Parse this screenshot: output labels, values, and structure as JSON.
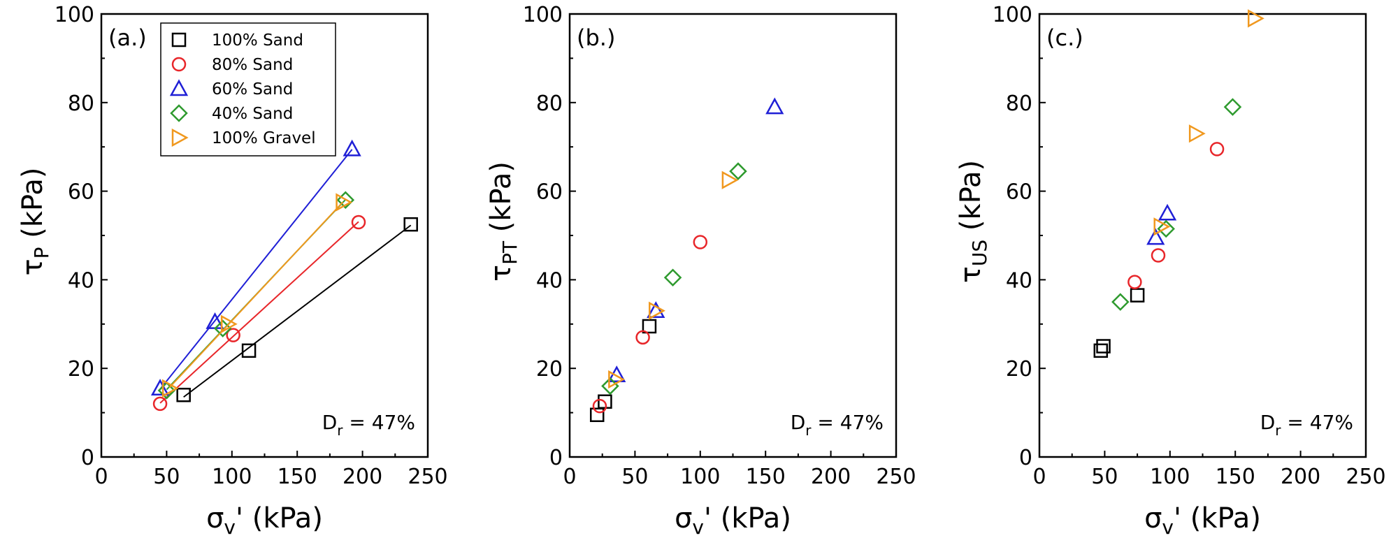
{
  "colors": {
    "100% Sand": "#000000",
    "80% Sand": "#e8262a",
    "60% Sand": "#1f1fd6",
    "40% Sand": "#2e9a2e",
    "100% Gravel": "#f0981e"
  },
  "markers": {
    "100% Sand": "square",
    "80% Sand": "circle",
    "60% Sand": "triangle-up",
    "40% Sand": "diamond",
    "100% Gravel": "triangle-right"
  },
  "legend": [
    "100% Sand",
    "80% Sand",
    "60% Sand",
    "40% Sand",
    "100% Gravel"
  ],
  "chart_data": [
    {
      "type": "scatter",
      "panel_label": "(a.)",
      "xlabel": "σ",
      "xlabel_sub": "v",
      "xlabel_rest": "' (kPa)",
      "ylabel": "τ",
      "ylabel_sub": "P",
      "ylabel_rest": " (kPa)",
      "annotation": "D",
      "annotation_sub": "r",
      "annotation_rest": " = 47%",
      "xlim": [
        0,
        250
      ],
      "ylim": [
        0,
        100
      ],
      "xticks": [
        0,
        50,
        100,
        150,
        200,
        250
      ],
      "yticks": [
        0,
        20,
        40,
        60,
        80,
        100
      ],
      "legend_position": "top-left",
      "fit_lines": true,
      "series": [
        {
          "name": "100% Sand",
          "x": [
            63,
            113,
            237
          ],
          "y": [
            14,
            24,
            52.5
          ]
        },
        {
          "name": "80% Sand",
          "x": [
            45,
            101,
            197
          ],
          "y": [
            12,
            27.5,
            53
          ]
        },
        {
          "name": "60% Sand",
          "x": [
            45,
            87,
            192
          ],
          "y": [
            15.5,
            30.5,
            69.5
          ]
        },
        {
          "name": "40% Sand",
          "x": [
            50,
            93,
            187
          ],
          "y": [
            15,
            29,
            58
          ]
        },
        {
          "name": "100% Gravel",
          "x": [
            52,
            97,
            185
          ],
          "y": [
            15.5,
            30,
            57.5
          ]
        }
      ]
    },
    {
      "type": "scatter",
      "panel_label": "(b.)",
      "xlabel": "σ",
      "xlabel_sub": "v",
      "xlabel_rest": "' (kPa)",
      "ylabel": "τ",
      "ylabel_sub": "PT",
      "ylabel_rest": " (kPa)",
      "annotation": "D",
      "annotation_sub": "r",
      "annotation_rest": " = 47%",
      "xlim": [
        0,
        250
      ],
      "ylim": [
        0,
        100
      ],
      "xticks": [
        0,
        50,
        100,
        150,
        200,
        250
      ],
      "yticks": [
        0,
        20,
        40,
        60,
        80,
        100
      ],
      "fit_lines": false,
      "series": [
        {
          "name": "100% Sand",
          "x": [
            21,
            27,
            61
          ],
          "y": [
            9.5,
            12.5,
            29.5
          ]
        },
        {
          "name": "80% Sand",
          "x": [
            23,
            56,
            100
          ],
          "y": [
            11.5,
            27,
            48.5
          ]
        },
        {
          "name": "60% Sand",
          "x": [
            36,
            66,
            157
          ],
          "y": [
            18.5,
            33,
            79
          ]
        },
        {
          "name": "40% Sand",
          "x": [
            31,
            79,
            129
          ],
          "y": [
            16,
            40.5,
            64.5
          ]
        },
        {
          "name": "100% Gravel",
          "x": [
            35,
            66,
            122
          ],
          "y": [
            17.5,
            33,
            62.5
          ]
        }
      ]
    },
    {
      "type": "scatter",
      "panel_label": "(c.)",
      "xlabel": "σ",
      "xlabel_sub": "v",
      "xlabel_rest": "' (kPa)",
      "ylabel": "τ",
      "ylabel_sub": "US",
      "ylabel_rest": " (kPa)",
      "annotation": "D",
      "annotation_sub": "r",
      "annotation_rest": " = 47%",
      "xlim": [
        0,
        250
      ],
      "ylim": [
        0,
        100
      ],
      "xticks": [
        0,
        50,
        100,
        150,
        200,
        250
      ],
      "yticks": [
        0,
        20,
        40,
        60,
        80,
        100
      ],
      "fit_lines": false,
      "series": [
        {
          "name": "100% Sand",
          "x": [
            47,
            49,
            75
          ],
          "y": [
            24,
            25,
            36.5
          ]
        },
        {
          "name": "80% Sand",
          "x": [
            73,
            91,
            136
          ],
          "y": [
            39.5,
            45.5,
            69.5
          ]
        },
        {
          "name": "60% Sand",
          "x": [
            89,
            98
          ],
          "y": [
            49.5,
            55
          ]
        },
        {
          "name": "40% Sand",
          "x": [
            62,
            97,
            148
          ],
          "y": [
            35,
            51.5,
            79
          ]
        },
        {
          "name": "100% Gravel",
          "x": [
            93,
            120,
            165
          ],
          "y": [
            52,
            73,
            99
          ]
        }
      ]
    }
  ]
}
